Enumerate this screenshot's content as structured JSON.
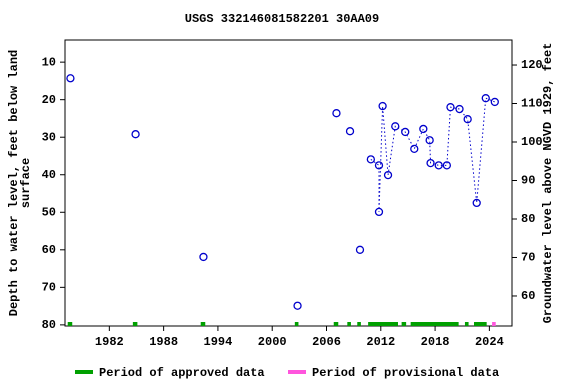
{
  "chart_data": {
    "type": "line",
    "title": "USGS 332146081582201 30AA09",
    "ylabel": [
      "Depth to water level, feet below land",
      "surface"
    ],
    "y2label": "Groundwater level above NGVD 1929, feet",
    "xlim": [
      1977.1,
      2026.5
    ],
    "xticks": [
      1982,
      1988,
      1994,
      2000,
      2006,
      2012,
      2018,
      2024
    ],
    "ylim": [
      4.1,
      80.3
    ],
    "y_inverted": true,
    "yticks": [
      10,
      20,
      30,
      40,
      50,
      60,
      70,
      80
    ],
    "y2lim": [
      52.2,
      126.5
    ],
    "y2ticks": [
      60,
      70,
      80,
      90,
      100,
      110,
      120
    ],
    "series": [
      {
        "color": "#0000cc",
        "x": [
          1977.7,
          null,
          1984.9,
          null,
          1992.4,
          null,
          2002.8,
          null,
          2007.1,
          null,
          2008.6,
          null,
          2009.7,
          null,
          2010.9,
          2011.8,
          2011.8,
          2012.2,
          2012.8,
          2013.6,
          2014.7,
          2015.7,
          2016.7,
          2017.4,
          2017.5,
          2018.4,
          2019.3,
          2019.7,
          2020.7,
          2021.6,
          2022.6,
          2023.6,
          2024.6
        ],
        "values": [
          14.3,
          null,
          29.2,
          null,
          61.9,
          null,
          74.9,
          null,
          23.6,
          null,
          28.4,
          null,
          60.0,
          null,
          35.9,
          37.5,
          49.9,
          21.7,
          40.1,
          27.1,
          28.6,
          33.1,
          27.8,
          30.8,
          36.9,
          37.5,
          37.5,
          22.0,
          22.5,
          25.2,
          47.5,
          19.6,
          20.6
        ]
      }
    ],
    "periods": [
      {
        "name": "Period of approved data",
        "color": "#00a000",
        "ranges": [
          [
            1977.4,
            1977.9
          ],
          [
            1984.6,
            1985.1
          ],
          [
            1992.1,
            1992.6
          ],
          [
            2002.5,
            2002.9
          ],
          [
            2006.8,
            2007.3
          ],
          [
            2008.3,
            2008.7
          ],
          [
            2009.4,
            2009.8
          ],
          [
            2010.6,
            2013.9
          ],
          [
            2014.3,
            2014.8
          ],
          [
            2015.3,
            2020.6
          ],
          [
            2021.3,
            2021.7
          ],
          [
            2022.3,
            2023.7
          ]
        ]
      },
      {
        "name": "Period of provisional data",
        "color": "#ff55dd",
        "ranges": [
          [
            2024.3,
            2024.7
          ]
        ]
      }
    ]
  }
}
